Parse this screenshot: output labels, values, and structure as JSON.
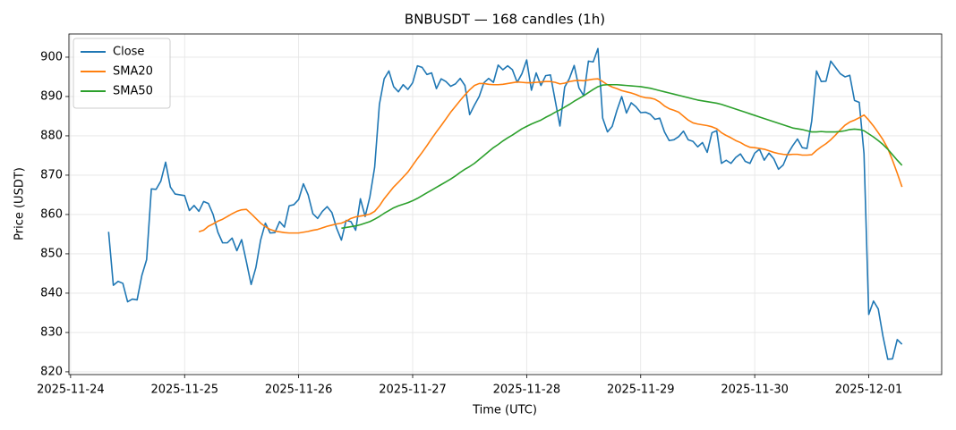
{
  "chart_data": {
    "type": "line",
    "title": "BNBUSDT — 168 candles (1h)",
    "x_label": "Time (UTC)",
    "y_label": "Price (USDT)",
    "grid": true,
    "legend": "upper left",
    "x": [
      "2025-11-24 08:00",
      "2025-11-24 09:00",
      "2025-11-24 10:00",
      "2025-11-24 11:00",
      "2025-11-24 12:00",
      "2025-11-24 13:00",
      "2025-11-24 14:00",
      "2025-11-24 15:00",
      "2025-11-24 16:00",
      "2025-11-24 17:00",
      "2025-11-24 18:00",
      "2025-11-24 19:00",
      "2025-11-24 20:00",
      "2025-11-24 21:00",
      "2025-11-24 22:00",
      "2025-11-24 23:00",
      "2025-11-25 00:00",
      "2025-11-25 01:00",
      "2025-11-25 02:00",
      "2025-11-25 03:00",
      "2025-11-25 04:00",
      "2025-11-25 05:00",
      "2025-11-25 06:00",
      "2025-11-25 07:00",
      "2025-11-25 08:00",
      "2025-11-25 09:00",
      "2025-11-25 10:00",
      "2025-11-25 11:00",
      "2025-11-25 12:00",
      "2025-11-25 13:00",
      "2025-11-25 14:00",
      "2025-11-25 15:00",
      "2025-11-25 16:00",
      "2025-11-25 17:00",
      "2025-11-25 18:00",
      "2025-11-25 19:00",
      "2025-11-25 20:00",
      "2025-11-25 21:00",
      "2025-11-25 22:00",
      "2025-11-25 23:00",
      "2025-11-26 00:00",
      "2025-11-26 01:00",
      "2025-11-26 02:00",
      "2025-11-26 03:00",
      "2025-11-26 04:00",
      "2025-11-26 05:00",
      "2025-11-26 06:00",
      "2025-11-26 07:00",
      "2025-11-26 08:00",
      "2025-11-26 09:00",
      "2025-11-26 10:00",
      "2025-11-26 11:00",
      "2025-11-26 12:00",
      "2025-11-26 13:00",
      "2025-11-26 14:00",
      "2025-11-26 15:00",
      "2025-11-26 16:00",
      "2025-11-26 17:00",
      "2025-11-26 18:00",
      "2025-11-26 19:00",
      "2025-11-26 20:00",
      "2025-11-26 21:00",
      "2025-11-26 22:00",
      "2025-11-26 23:00",
      "2025-11-27 00:00",
      "2025-11-27 01:00",
      "2025-11-27 02:00",
      "2025-11-27 03:00",
      "2025-11-27 04:00",
      "2025-11-27 05:00",
      "2025-11-27 06:00",
      "2025-11-27 07:00",
      "2025-11-27 08:00",
      "2025-11-27 09:00",
      "2025-11-27 10:00",
      "2025-11-27 11:00",
      "2025-11-27 12:00",
      "2025-11-27 13:00",
      "2025-11-27 14:00",
      "2025-11-27 15:00",
      "2025-11-27 16:00",
      "2025-11-27 17:00",
      "2025-11-27 18:00",
      "2025-11-27 19:00",
      "2025-11-27 20:00",
      "2025-11-27 21:00",
      "2025-11-27 22:00",
      "2025-11-27 23:00",
      "2025-11-28 00:00",
      "2025-11-28 01:00",
      "2025-11-28 02:00",
      "2025-11-28 03:00",
      "2025-11-28 04:00",
      "2025-11-28 05:00",
      "2025-11-28 06:00",
      "2025-11-28 07:00",
      "2025-11-28 08:00",
      "2025-11-28 09:00",
      "2025-11-28 10:00",
      "2025-11-28 11:00",
      "2025-11-28 12:00",
      "2025-11-28 13:00",
      "2025-11-28 14:00",
      "2025-11-28 15:00",
      "2025-11-28 16:00",
      "2025-11-28 17:00",
      "2025-11-28 18:00",
      "2025-11-28 19:00",
      "2025-11-28 20:00",
      "2025-11-28 21:00",
      "2025-11-28 22:00",
      "2025-11-28 23:00",
      "2025-11-29 00:00",
      "2025-11-29 01:00",
      "2025-11-29 02:00",
      "2025-11-29 03:00",
      "2025-11-29 04:00",
      "2025-11-29 05:00",
      "2025-11-29 06:00",
      "2025-11-29 07:00",
      "2025-11-29 08:00",
      "2025-11-29 09:00",
      "2025-11-29 10:00",
      "2025-11-29 11:00",
      "2025-11-29 12:00",
      "2025-11-29 13:00",
      "2025-11-29 14:00",
      "2025-11-29 15:00",
      "2025-11-29 16:00",
      "2025-11-29 17:00",
      "2025-11-29 18:00",
      "2025-11-29 19:00",
      "2025-11-29 20:00",
      "2025-11-29 21:00",
      "2025-11-29 22:00",
      "2025-11-29 23:00",
      "2025-11-30 00:00",
      "2025-11-30 01:00",
      "2025-11-30 02:00",
      "2025-11-30 03:00",
      "2025-11-30 04:00",
      "2025-11-30 05:00",
      "2025-11-30 06:00",
      "2025-11-30 07:00",
      "2025-11-30 08:00",
      "2025-11-30 09:00",
      "2025-11-30 10:00",
      "2025-11-30 11:00",
      "2025-11-30 12:00",
      "2025-11-30 13:00",
      "2025-11-30 14:00",
      "2025-11-30 15:00",
      "2025-11-30 16:00",
      "2025-11-30 17:00",
      "2025-11-30 18:00",
      "2025-11-30 19:00",
      "2025-11-30 20:00",
      "2025-11-30 21:00",
      "2025-11-30 22:00",
      "2025-11-30 23:00",
      "2025-12-01 00:00",
      "2025-12-01 01:00",
      "2025-12-01 02:00",
      "2025-12-01 03:00",
      "2025-12-01 04:00",
      "2025-12-01 05:00",
      "2025-12-01 06:00",
      "2025-12-01 07:00"
    ],
    "series": [
      {
        "name": "Close",
        "color": "#1f77b4",
        "values": [
          855.6,
          842,
          843,
          842.5,
          837.8,
          838.5,
          838.3,
          844.5,
          848.5,
          866.5,
          866.4,
          868.5,
          873.3,
          867,
          865.2,
          865,
          864.8,
          861,
          862.3,
          860.8,
          863.3,
          862.8,
          860,
          855.5,
          852.8,
          852.8,
          854,
          850.8,
          853.6,
          848,
          842.2,
          846.5,
          853.5,
          857.8,
          855.3,
          855.4,
          858.2,
          856.8,
          862.2,
          862.5,
          863.8,
          867.8,
          865,
          860.2,
          859,
          860.8,
          862,
          860.5,
          856.5,
          853.5,
          858.5,
          858.2,
          856,
          864,
          859.5,
          864.5,
          872,
          888,
          894.5,
          896.5,
          892.5,
          891.2,
          893,
          891.8,
          893.5,
          897.8,
          897.4,
          895.6,
          896,
          892,
          894.5,
          893.8,
          892.6,
          893.2,
          894.6,
          892.8,
          885.4,
          887.8,
          890,
          893.5,
          894.6,
          893.6,
          898,
          896.8,
          897.8,
          896.8,
          893.6,
          895.8,
          899.3,
          891.6,
          896,
          892.8,
          895.3,
          895.5,
          889,
          882.5,
          892.4,
          894.6,
          897.9,
          892.2,
          890.2,
          899,
          898.8,
          902.2,
          884.5,
          881,
          882.4,
          886.5,
          890,
          885.8,
          888.4,
          887.4,
          885.9,
          886,
          885.5,
          884.2,
          884.5,
          881,
          878.8,
          879,
          879.8,
          881.2,
          879,
          878.6,
          877.2,
          878.3,
          875.8,
          880.8,
          881.3,
          873,
          873.8,
          873,
          874.5,
          875.4,
          873.5,
          873,
          875.6,
          876.6,
          873.8,
          875.6,
          874.2,
          871.5,
          872.6,
          875.5,
          877.5,
          879.2,
          877,
          876.8,
          883.8,
          896.5,
          893.8,
          893.9,
          899,
          897.4,
          895.8,
          895,
          895.4,
          889,
          888.5,
          875.5,
          834.6,
          838,
          836,
          829,
          823.2,
          823.3,
          828.2,
          827
        ]
      },
      {
        "name": "SMA20",
        "color": "#ff7f0e",
        "values": [
          null,
          null,
          null,
          null,
          null,
          null,
          null,
          null,
          null,
          null,
          null,
          null,
          null,
          null,
          null,
          null,
          null,
          null,
          null,
          855.6,
          856,
          857,
          857.6,
          858.3,
          858.8,
          859.5,
          860.2,
          860.8,
          861.2,
          861.3,
          860.2,
          859,
          857.8,
          856.9,
          856.2,
          855.8,
          855.6,
          855.4,
          855.3,
          855.3,
          855.3,
          855.5,
          855.7,
          856,
          856.2,
          856.6,
          857,
          857.3,
          857.6,
          857.8,
          858.3,
          859,
          859.4,
          859.6,
          859.8,
          860.1,
          860.8,
          862.2,
          864,
          865.5,
          867,
          868.2,
          869.5,
          870.8,
          872.5,
          874.2,
          875.8,
          877.5,
          879.3,
          881,
          882.6,
          884.3,
          886,
          887.5,
          889,
          890.4,
          891.7,
          892.8,
          893.3,
          893.3,
          893.1,
          893,
          893,
          893.1,
          893.3,
          893.5,
          893.7,
          893.6,
          893.5,
          893.5,
          893.6,
          893.7,
          893.8,
          893.8,
          893.6,
          893.2,
          893.4,
          893.8,
          894,
          894.1,
          894,
          894.2,
          894.4,
          894.5,
          893.8,
          893,
          892.4,
          892,
          891.5,
          891.2,
          890.9,
          890.5,
          890,
          889.7,
          889.6,
          889.3,
          888.6,
          887.6,
          886.9,
          886.5,
          886,
          885,
          884,
          883.3,
          883,
          882.8,
          882.6,
          882.3,
          881.8,
          880.8,
          880.1,
          879.5,
          878.8,
          878.3,
          877.6,
          877.1,
          877,
          876.8,
          876.6,
          876.2,
          875.8,
          875.5,
          875.3,
          875.2,
          875.3,
          875.3,
          875.1,
          875.1,
          875.2,
          876.3,
          877.2,
          878,
          879,
          880.2,
          881.5,
          882.7,
          883.5,
          884,
          884.6,
          885.3,
          884,
          882.5,
          880.8,
          879,
          876.8,
          873.8,
          870.5,
          867
        ]
      },
      {
        "name": "SMA50",
        "color": "#2ca02c",
        "values": [
          null,
          null,
          null,
          null,
          null,
          null,
          null,
          null,
          null,
          null,
          null,
          null,
          null,
          null,
          null,
          null,
          null,
          null,
          null,
          null,
          null,
          null,
          null,
          null,
          null,
          null,
          null,
          null,
          null,
          null,
          null,
          null,
          null,
          null,
          null,
          null,
          null,
          null,
          null,
          null,
          null,
          null,
          null,
          null,
          null,
          null,
          null,
          null,
          null,
          856.5,
          856.7,
          856.9,
          857.1,
          857.4,
          857.8,
          858.2,
          858.8,
          859.5,
          860.3,
          861,
          861.7,
          862.2,
          862.6,
          863,
          863.5,
          864.1,
          864.8,
          865.5,
          866.2,
          866.9,
          867.6,
          868.3,
          869,
          869.8,
          870.7,
          871.5,
          872.2,
          873,
          874,
          875,
          876,
          877,
          877.8,
          878.7,
          879.5,
          880.2,
          881,
          881.8,
          882.4,
          883,
          883.5,
          884,
          884.7,
          885.3,
          886,
          886.6,
          887.3,
          888,
          888.8,
          889.5,
          890.2,
          891,
          891.8,
          892.5,
          892.9,
          893,
          893,
          893,
          892.9,
          892.8,
          892.7,
          892.6,
          892.5,
          892.3,
          892.1,
          891.8,
          891.5,
          891.2,
          890.9,
          890.6,
          890.3,
          890,
          889.7,
          889.4,
          889.1,
          888.9,
          888.7,
          888.5,
          888.3,
          888,
          887.6,
          887.2,
          886.8,
          886.4,
          886,
          885.6,
          885.2,
          884.8,
          884.4,
          884,
          883.6,
          883.2,
          882.8,
          882.4,
          882,
          881.8,
          881.6,
          881.3,
          881,
          881,
          881.1,
          881,
          881,
          881,
          881.1,
          881.3,
          881.6,
          881.7,
          881.6,
          881.3,
          880.5,
          879.7,
          878.8,
          877.8,
          876.6,
          875.2,
          873.8,
          872.5
        ]
      }
    ],
    "xlim": [
      "2025-11-23 23:39",
      "2025-12-01 15:21"
    ],
    "xticks": [
      "2025-11-24",
      "2025-11-25",
      "2025-11-26",
      "2025-11-27",
      "2025-11-28",
      "2025-11-29",
      "2025-11-30",
      "2025-12-01"
    ],
    "ylim": [
      819.3,
      905.9
    ],
    "yticks": [
      820,
      830,
      840,
      850,
      860,
      870,
      880,
      890,
      900
    ]
  }
}
